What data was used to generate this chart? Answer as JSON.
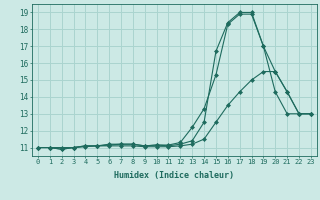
{
  "xlabel": "Humidex (Indice chaleur)",
  "bg_color": "#cce9e5",
  "grid_color": "#aad4cf",
  "line_color": "#1e6b5e",
  "xlim": [
    -0.5,
    23.5
  ],
  "ylim": [
    10.5,
    19.5
  ],
  "xticks": [
    0,
    1,
    2,
    3,
    4,
    5,
    6,
    7,
    8,
    9,
    10,
    11,
    12,
    13,
    14,
    15,
    16,
    17,
    18,
    19,
    20,
    21,
    22,
    23
  ],
  "yticks": [
    11,
    12,
    13,
    14,
    15,
    16,
    17,
    18,
    19
  ],
  "series": [
    {
      "x": [
        0,
        1,
        2,
        3,
        4,
        5,
        6,
        7,
        8,
        9,
        10,
        11,
        12,
        13,
        14,
        15,
        16,
        17,
        18,
        19,
        20,
        21,
        22,
        23
      ],
      "y": [
        11,
        11,
        10.9,
        11,
        11.1,
        11.1,
        11.15,
        11.2,
        11.2,
        11.1,
        11.15,
        11.15,
        11.3,
        12.2,
        13.3,
        15.3,
        18.3,
        18.9,
        18.9,
        17.0,
        15.5,
        14.3,
        13.0,
        13.0
      ]
    },
    {
      "x": [
        0,
        1,
        2,
        3,
        4,
        5,
        6,
        7,
        8,
        9,
        10,
        11,
        12,
        13,
        14,
        15,
        16,
        17,
        18,
        19,
        20,
        21,
        22,
        23
      ],
      "y": [
        11,
        11,
        10.9,
        11,
        11.1,
        11.1,
        11.2,
        11.2,
        11.2,
        11.1,
        11.15,
        11.1,
        11.2,
        11.4,
        12.5,
        16.7,
        18.4,
        19.0,
        19.0,
        17.0,
        14.3,
        13.0,
        13.0,
        13.0
      ]
    },
    {
      "x": [
        0,
        1,
        2,
        3,
        4,
        5,
        6,
        7,
        8,
        9,
        10,
        11,
        12,
        13,
        14,
        15,
        16,
        17,
        18,
        19,
        20,
        21,
        22,
        23
      ],
      "y": [
        11,
        11,
        11,
        11,
        11.05,
        11.1,
        11.1,
        11.1,
        11.1,
        11.05,
        11.05,
        11.05,
        11.1,
        11.2,
        11.5,
        12.5,
        13.5,
        14.3,
        15.0,
        15.5,
        15.5,
        14.3,
        13.0,
        13.0
      ]
    }
  ],
  "figsize": [
    3.2,
    2.0
  ],
  "dpi": 100
}
